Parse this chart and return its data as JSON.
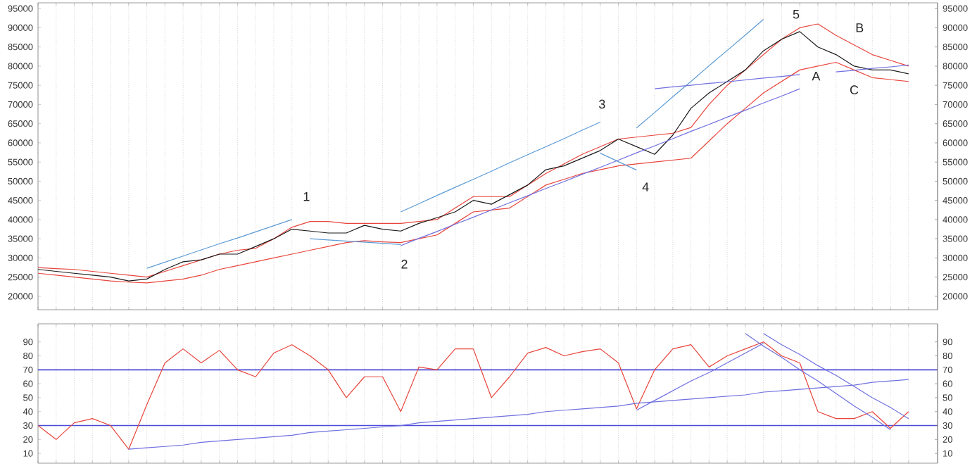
{
  "chart_data": [
    {
      "type": "line",
      "categories": [
        null,
        null,
        null,
        null,
        null,
        null,
        null,
        null,
        null,
        null,
        null,
        null,
        null,
        null,
        null,
        null,
        null,
        null,
        null,
        null,
        null,
        null,
        null,
        null,
        null,
        null,
        null,
        null,
        null,
        null,
        null,
        null,
        null,
        null,
        null,
        null,
        null,
        null,
        null,
        null,
        null,
        null,
        null,
        null,
        null,
        null,
        null,
        null,
        null
      ],
      "series": [
        {
          "color": "#e8453c",
          "values": [
            27500,
            27200,
            27000,
            26500,
            26000,
            25500,
            25000,
            26500,
            28000,
            29500,
            31000,
            32000,
            32500,
            35000,
            38000,
            39500,
            39500,
            39000,
            39000,
            39000,
            39000,
            39500,
            40000,
            43000,
            46000,
            46000,
            46000,
            49000,
            52000,
            54500,
            57000,
            59000,
            61000,
            61500,
            62000,
            62500,
            64000,
            70000,
            75000,
            79000,
            83000,
            87000,
            90000,
            91000,
            88000,
            85500,
            83000,
            81500,
            80000
          ]
        },
        {
          "color": "#e8453c",
          "values": [
            26000,
            25500,
            25000,
            24500,
            24000,
            23700,
            23500,
            24000,
            24500,
            25500,
            27000,
            28000,
            29000,
            30000,
            31000,
            32000,
            33000,
            34000,
            34500,
            34200,
            34000,
            35000,
            36000,
            39000,
            42000,
            42500,
            43000,
            46000,
            49000,
            50500,
            52000,
            53000,
            54000,
            54500,
            55000,
            55500,
            56000,
            60500,
            65000,
            69000,
            73000,
            76000,
            79000,
            80000,
            81000,
            79000,
            77000,
            76500,
            76000
          ]
        },
        {
          "color": "#1a1a1a",
          "values": [
            27000,
            26500,
            26000,
            25500,
            25000,
            24000,
            24500,
            27000,
            29000,
            29500,
            31000,
            31000,
            33000,
            35000,
            37500,
            37000,
            36500,
            36500,
            38500,
            37500,
            37000,
            39000,
            40500,
            42000,
            45000,
            44000,
            46500,
            49000,
            53000,
            54000,
            56000,
            58000,
            61000,
            59000,
            57000,
            62000,
            69000,
            73000,
            76000,
            79000,
            84000,
            87000,
            89000,
            85000,
            83000,
            80000,
            79000,
            79000,
            78000
          ]
        },
        {
          "color": "#5b9bd5",
          "values": [
            null,
            null,
            null,
            null,
            null,
            null,
            27300,
            28900,
            30500,
            32100,
            33700,
            35200,
            36800,
            38400,
            40000,
            null,
            null,
            null,
            null,
            null,
            null,
            null,
            null,
            null,
            null,
            null,
            null,
            null,
            null,
            null,
            null,
            null,
            null,
            null,
            null,
            null,
            null,
            null,
            null,
            null,
            null,
            null,
            null,
            null,
            null,
            null,
            null,
            null,
            null
          ]
        },
        {
          "color": "#5b9bd5",
          "values": [
            null,
            null,
            null,
            null,
            null,
            null,
            null,
            null,
            null,
            null,
            null,
            null,
            null,
            null,
            null,
            35000,
            34700,
            34400,
            34100,
            33800,
            33500,
            null,
            null,
            null,
            null,
            null,
            null,
            null,
            null,
            null,
            null,
            null,
            null,
            null,
            null,
            null,
            null,
            null,
            null,
            null,
            null,
            null,
            null,
            null,
            null,
            null,
            null,
            null,
            null
          ]
        },
        {
          "color": "#5b9bd5",
          "values": [
            null,
            null,
            null,
            null,
            null,
            null,
            null,
            null,
            null,
            null,
            null,
            null,
            null,
            null,
            null,
            null,
            null,
            null,
            null,
            null,
            42000,
            44100,
            46300,
            48400,
            50500,
            52600,
            54800,
            56900,
            59000,
            61100,
            63300,
            65400,
            null,
            null,
            null,
            null,
            null,
            null,
            null,
            null,
            null,
            null,
            null,
            null,
            null,
            null,
            null,
            null,
            null
          ]
        },
        {
          "color": "#5b9bd5",
          "values": [
            null,
            null,
            null,
            null,
            null,
            null,
            null,
            null,
            null,
            null,
            null,
            null,
            null,
            null,
            null,
            null,
            null,
            null,
            null,
            null,
            null,
            null,
            null,
            null,
            null,
            null,
            null,
            null,
            null,
            null,
            null,
            57300,
            55100,
            52900,
            null,
            null,
            null,
            null,
            null,
            null,
            null,
            null,
            null,
            null,
            null,
            null,
            null,
            null,
            null
          ]
        },
        {
          "color": "#5b9bd5",
          "values": [
            null,
            null,
            null,
            null,
            null,
            null,
            null,
            null,
            null,
            null,
            null,
            null,
            null,
            null,
            null,
            null,
            null,
            null,
            null,
            null,
            null,
            null,
            null,
            null,
            null,
            null,
            null,
            null,
            null,
            null,
            null,
            null,
            null,
            63900,
            67900,
            72000,
            76000,
            80100,
            84100,
            88100,
            92200,
            null,
            null,
            null,
            null,
            null,
            null,
            null,
            null
          ]
        },
        {
          "color": "#6f6fe0",
          "values": [
            null,
            null,
            null,
            null,
            null,
            null,
            null,
            null,
            null,
            null,
            null,
            null,
            null,
            null,
            null,
            null,
            null,
            null,
            null,
            null,
            33200,
            35100,
            36900,
            38800,
            40600,
            42500,
            44400,
            46200,
            48100,
            49900,
            51800,
            53600,
            55500,
            57400,
            59200,
            61100,
            63000,
            64800,
            66700,
            68500,
            70400,
            72200,
            74100,
            null,
            null,
            null,
            null,
            null,
            null
          ]
        },
        {
          "color": "#6f6fe0",
          "values": [
            null,
            null,
            null,
            null,
            null,
            null,
            null,
            null,
            null,
            null,
            null,
            null,
            null,
            null,
            null,
            null,
            null,
            null,
            null,
            null,
            null,
            null,
            null,
            null,
            null,
            null,
            null,
            null,
            null,
            null,
            null,
            null,
            null,
            null,
            74100,
            74600,
            75000,
            75500,
            75900,
            76400,
            76900,
            77300,
            77800,
            null,
            null,
            null,
            null,
            null,
            null
          ]
        },
        {
          "color": "#6f6fe0",
          "values": [
            null,
            null,
            null,
            null,
            null,
            null,
            null,
            null,
            null,
            null,
            null,
            null,
            null,
            null,
            null,
            null,
            null,
            null,
            null,
            null,
            null,
            null,
            null,
            null,
            null,
            null,
            null,
            null,
            null,
            null,
            null,
            null,
            null,
            null,
            null,
            null,
            null,
            null,
            null,
            null,
            null,
            null,
            null,
            null,
            78500,
            78900,
            79400,
            79800,
            80300
          ]
        }
      ],
      "annotations": [
        "1",
        "2",
        "3",
        "4",
        "5",
        "A",
        "B",
        "C"
      ],
      "ylim": [
        16500,
        96500
      ],
      "yticks": [
        20000,
        25000,
        30000,
        35000,
        40000,
        45000,
        50000,
        55000,
        60000,
        65000,
        70000,
        75000,
        80000,
        85000,
        90000,
        95000
      ],
      "y2lim": [
        16500,
        96500
      ],
      "y2ticks": [
        20000,
        25000,
        30000,
        35000,
        40000,
        45000,
        50000,
        55000,
        60000,
        65000,
        70000,
        75000,
        80000,
        85000,
        90000,
        95000
      ],
      "grid": "x",
      "tick_labels": "y"
    },
    {
      "type": "line",
      "categories": [
        null,
        null,
        null,
        null,
        null,
        null,
        null,
        null,
        null,
        null,
        null,
        null,
        null,
        null,
        null,
        null,
        null,
        null,
        null,
        null,
        null,
        null,
        null,
        null,
        null,
        null,
        null,
        null,
        null,
        null,
        null,
        null,
        null,
        null,
        null,
        null,
        null,
        null,
        null,
        null,
        null,
        null,
        null,
        null,
        null,
        null,
        null,
        null,
        null
      ],
      "series": [
        {
          "color": "#e8453c",
          "values": [
            30,
            20,
            32,
            35,
            30,
            13,
            45,
            75,
            85,
            75,
            84,
            70,
            65,
            82,
            88,
            80,
            70,
            50,
            65,
            65,
            40,
            72,
            70,
            85,
            85,
            50,
            65,
            82,
            86,
            80,
            83,
            85,
            75,
            42,
            70,
            85,
            88,
            72,
            80,
            85,
            90,
            80,
            75,
            40,
            35,
            35,
            40,
            28,
            40
          ]
        },
        {
          "color": "#6f6fe0",
          "values": [
            null,
            null,
            null,
            null,
            null,
            13,
            14,
            15,
            16,
            18,
            19,
            20,
            21,
            22,
            23,
            25,
            26,
            27,
            28,
            29,
            30,
            32,
            33,
            34,
            35,
            36,
            37,
            38,
            40,
            41,
            42,
            43,
            44,
            46,
            47,
            48,
            49,
            50,
            51,
            52,
            54,
            55,
            56,
            57,
            58,
            59,
            61,
            62,
            63
          ]
        },
        {
          "color": "#6f6fe0",
          "values": [
            null,
            null,
            null,
            null,
            null,
            null,
            null,
            null,
            null,
            null,
            null,
            null,
            null,
            null,
            null,
            null,
            null,
            null,
            null,
            null,
            null,
            null,
            null,
            null,
            null,
            null,
            null,
            null,
            null,
            null,
            null,
            null,
            null,
            41,
            48,
            55,
            62,
            68,
            75,
            82,
            89,
            null,
            null,
            null,
            null,
            null,
            null,
            null,
            null
          ]
        },
        {
          "color": "#6f6fe0",
          "values": [
            null,
            null,
            null,
            null,
            null,
            null,
            null,
            null,
            null,
            null,
            null,
            null,
            null,
            null,
            null,
            null,
            null,
            null,
            null,
            null,
            null,
            null,
            null,
            null,
            null,
            null,
            null,
            null,
            null,
            null,
            null,
            null,
            null,
            null,
            null,
            null,
            null,
            null,
            null,
            96,
            87,
            79,
            70,
            62,
            53,
            44,
            36,
            27,
            null
          ]
        },
        {
          "color": "#6f6fe0",
          "values": [
            null,
            null,
            null,
            null,
            null,
            null,
            null,
            null,
            null,
            null,
            null,
            null,
            null,
            null,
            null,
            null,
            null,
            null,
            null,
            null,
            null,
            null,
            null,
            null,
            null,
            null,
            null,
            null,
            null,
            null,
            null,
            null,
            null,
            null,
            null,
            null,
            null,
            null,
            null,
            null,
            96,
            88,
            81,
            73,
            66,
            58,
            50,
            43,
            35
          ]
        }
      ],
      "ref_lines": [
        {
          "axis": "y",
          "value": 70,
          "color": "#4a4adb"
        },
        {
          "axis": "y",
          "value": 30,
          "color": "#4a4adb"
        }
      ],
      "ylim": [
        3,
        103
      ],
      "yticks": [
        10,
        20,
        30,
        40,
        50,
        60,
        70,
        80,
        90
      ],
      "y2lim": [
        3,
        103
      ],
      "y2ticks": [
        10,
        20,
        30,
        40,
        50,
        60,
        70,
        80,
        90
      ],
      "grid": "x",
      "tick_labels": "y"
    }
  ]
}
